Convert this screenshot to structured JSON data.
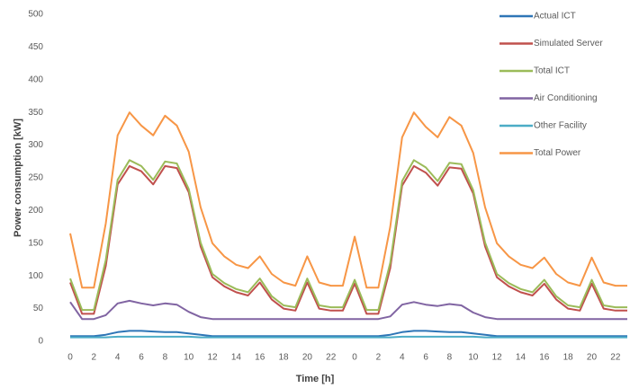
{
  "chart_data": {
    "type": "line",
    "x_label": "Time [h]",
    "y_label": "Power consumption [kW]",
    "categories": [
      "0",
      null,
      "2",
      null,
      "4",
      null,
      "6",
      null,
      "8",
      null,
      "10",
      null,
      "12",
      null,
      "14",
      null,
      "16",
      null,
      "18",
      null,
      "20",
      null,
      "22",
      null,
      "0",
      null,
      "2",
      null,
      "4",
      null,
      "6",
      null,
      "8",
      null,
      "10",
      null,
      "12",
      null,
      "14",
      null,
      "16",
      null,
      "18",
      null,
      "20",
      null,
      "22",
      null
    ],
    "ylim": [
      0,
      500
    ],
    "yticks": [
      0,
      50,
      100,
      150,
      200,
      250,
      300,
      350,
      400,
      450,
      500
    ],
    "legend": "right",
    "series": [
      {
        "name": "Actual ICT",
        "color": "#2e75b6",
        "values": [
          8,
          8,
          8,
          10,
          14,
          16,
          16,
          15,
          14,
          14,
          12,
          10,
          8,
          8,
          8,
          8,
          8,
          8,
          8,
          8,
          8,
          8,
          8,
          8,
          8,
          8,
          8,
          10,
          14,
          16,
          16,
          15,
          14,
          14,
          12,
          10,
          8,
          8,
          8,
          8,
          8,
          8,
          8,
          8,
          8,
          8,
          8,
          8
        ]
      },
      {
        "name": "Simulated Server",
        "color": "#c0504d",
        "values": [
          90,
          42,
          42,
          115,
          240,
          268,
          260,
          240,
          268,
          265,
          228,
          145,
          98,
          84,
          75,
          70,
          90,
          64,
          50,
          47,
          90,
          50,
          47,
          47,
          88,
          42,
          42,
          112,
          238,
          268,
          258,
          238,
          266,
          264,
          226,
          145,
          98,
          84,
          75,
          70,
          88,
          64,
          50,
          47,
          88,
          50,
          47,
          47
        ]
      },
      {
        "name": "Total ICT",
        "color": "#9bbb59",
        "values": [
          96,
          48,
          48,
          124,
          247,
          277,
          268,
          247,
          275,
          272,
          233,
          151,
          103,
          89,
          80,
          75,
          96,
          69,
          55,
          52,
          96,
          55,
          52,
          52,
          94,
          48,
          48,
          120,
          245,
          277,
          266,
          245,
          273,
          271,
          231,
          151,
          103,
          89,
          80,
          75,
          94,
          69,
          55,
          52,
          94,
          55,
          52,
          52
        ]
      },
      {
        "name": "Air Conditioning",
        "color": "#8064a2",
        "values": [
          60,
          34,
          34,
          40,
          58,
          62,
          58,
          55,
          58,
          56,
          45,
          37,
          34,
          34,
          34,
          34,
          34,
          34,
          34,
          34,
          34,
          34,
          34,
          34,
          34,
          34,
          34,
          38,
          56,
          60,
          56,
          54,
          57,
          55,
          44,
          37,
          34,
          34,
          34,
          34,
          34,
          34,
          34,
          34,
          34,
          34,
          34,
          34
        ]
      },
      {
        "name": "Other Facility",
        "color": "#4bacc6",
        "values": [
          6,
          6,
          6,
          6,
          7,
          7,
          7,
          7,
          7,
          7,
          7,
          6,
          6,
          6,
          6,
          6,
          6,
          6,
          6,
          6,
          6,
          6,
          6,
          6,
          6,
          6,
          6,
          6,
          7,
          7,
          7,
          7,
          7,
          7,
          7,
          6,
          6,
          6,
          6,
          6,
          6,
          6,
          6,
          6,
          6,
          6,
          6,
          6
        ]
      },
      {
        "name": "Total Power",
        "color": "#f79646",
        "values": [
          165,
          82,
          82,
          180,
          315,
          350,
          330,
          315,
          345,
          330,
          290,
          205,
          150,
          130,
          117,
          112,
          130,
          103,
          90,
          85,
          130,
          90,
          85,
          85,
          160,
          82,
          82,
          175,
          312,
          350,
          328,
          312,
          343,
          330,
          288,
          205,
          150,
          130,
          117,
          112,
          128,
          103,
          90,
          85,
          128,
          90,
          85,
          85
        ]
      }
    ]
  }
}
